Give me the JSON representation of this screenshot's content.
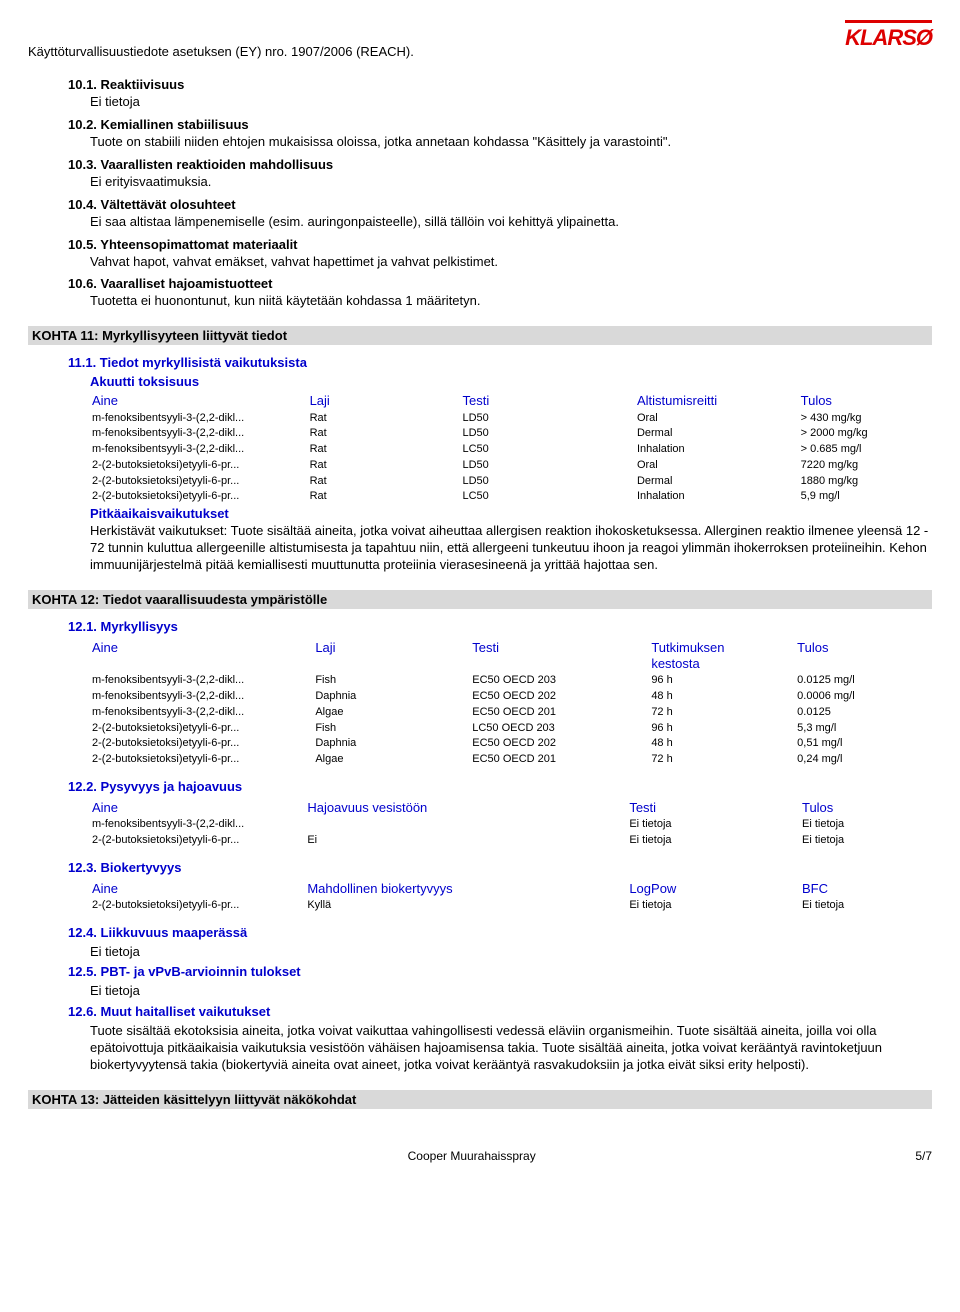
{
  "header": {
    "title": "Käyttöturvallisuustiedote asetuksen (EY) nro. 1907/2006 (REACH).",
    "logo": "KLARSØ"
  },
  "s10": {
    "h1": "10.1. Reaktiivisuus",
    "t1": "Ei tietoja",
    "h2": "10.2. Kemiallinen stabiilisuus",
    "t2": "Tuote on stabiili niiden ehtojen mukaisissa oloissa, jotka annetaan kohdassa \"Käsittely ja varastointi\".",
    "h3": "10.3. Vaarallisten reaktioiden mahdollisuus",
    "t3": "Ei erityisvaatimuksia.",
    "h4": "10.4. Vältettävät olosuhteet",
    "t4": "Ei saa altistaa lämpenemiselle (esim. auringonpaisteelle), sillä tällöin voi kehittyä ylipainetta.",
    "h5": "10.5. Yhteensopimattomat materiaalit",
    "t5": "Vahvat hapot, vahvat emäkset, vahvat hapettimet ja vahvat pelkistimet.",
    "h6": "10.6. Vaaralliset hajoamistuotteet",
    "t6": "Tuotetta ei huonontunut, kun niitä käytetään kohdassa 1 määritetyn."
  },
  "k11": {
    "title": "KOHTA 11: Myrkyllisyyteen liittyvät tiedot",
    "sub1": "11.1. Tiedot myrkyllisistä vaikutuksista",
    "sub2": "Akuutti toksisuus",
    "head": {
      "c1": "Aine",
      "c2": "Laji",
      "c3": "Testi",
      "c4": "Altistumisreitti",
      "c5": "Tulos"
    },
    "rows": [
      [
        "m-fenoksibentsyyli-3-(2,2-dikl...",
        "Rat",
        "LD50",
        "Oral",
        "> 430 mg/kg"
      ],
      [
        "m-fenoksibentsyyli-3-(2,2-dikl...",
        "Rat",
        "LD50",
        "Dermal",
        "> 2000 mg/kg"
      ],
      [
        "m-fenoksibentsyyli-3-(2,2-dikl...",
        "Rat",
        "LC50",
        "Inhalation",
        "> 0.685 mg/l"
      ],
      [
        "2-(2-butoksietoksi)etyyli-6-pr...",
        "Rat",
        "LD50",
        "Oral",
        "7220 mg/kg"
      ],
      [
        "2-(2-butoksietoksi)etyyli-6-pr...",
        "Rat",
        "LD50",
        "Dermal",
        "1880 mg/kg"
      ],
      [
        "2-(2-butoksietoksi)etyyli-6-pr...",
        "Rat",
        "LC50",
        "Inhalation",
        "5,9 mg/l"
      ]
    ],
    "sub3": "Pitkäaikaisvaikutukset",
    "para": "Herkistävät vaikutukset: Tuote sisältää aineita, jotka voivat aiheuttaa allergisen reaktion ihokosketuksessa. Allerginen reaktio ilmenee yleensä 12 - 72 tunnin kuluttua allergeenille altistumisesta ja tapahtuu niin, että allergeeni tunkeutuu ihoon ja reagoi ylimmän ihokerroksen proteiineihin. Kehon immuunijärjestelmä pitää kemiallisesti muuttunutta proteiinia vierasesineenä ja yrittää hajottaa sen."
  },
  "k12": {
    "title": "KOHTA 12: Tiedot vaarallisuudesta ympäristölle",
    "s1": "12.1. Myrkyllisyys",
    "head1": {
      "c1": "Aine",
      "c2": "Laji",
      "c3": "Testi",
      "c4a": "Tutkimuksen",
      "c4b": "kestosta",
      "c5": "Tulos"
    },
    "rows1": [
      [
        "m-fenoksibentsyyli-3-(2,2-dikl...",
        "Fish",
        "EC50 OECD 203",
        "96 h",
        "0.0125 mg/l"
      ],
      [
        "m-fenoksibentsyyli-3-(2,2-dikl...",
        "Daphnia",
        "EC50 OECD 202",
        "48 h",
        "0.0006 mg/l"
      ],
      [
        "m-fenoksibentsyyli-3-(2,2-dikl...",
        "Algae",
        "EC50 OECD 201",
        "72 h",
        "0.0125"
      ],
      [
        "2-(2-butoksietoksi)etyyli-6-pr...",
        "Fish",
        "LC50 OECD 203",
        "96 h",
        "5,3 mg/l"
      ],
      [
        "2-(2-butoksietoksi)etyyli-6-pr...",
        "Daphnia",
        "EC50 OECD 202",
        "48 h",
        "0,51 mg/l"
      ],
      [
        "2-(2-butoksietoksi)etyyli-6-pr...",
        "Algae",
        "EC50 OECD 201",
        "72 h",
        "0,24 mg/l"
      ]
    ],
    "s2": "12.2. Pysyvyys ja hajoavuus",
    "head2": {
      "c1": "Aine",
      "c2": "Hajoavuus vesistöön",
      "c3": "Testi",
      "c4": "Tulos"
    },
    "rows2": [
      [
        "m-fenoksibentsyyli-3-(2,2-dikl...",
        "",
        "Ei tietoja",
        "Ei tietoja"
      ],
      [
        "2-(2-butoksietoksi)etyyli-6-pr...",
        "Ei",
        "Ei tietoja",
        "Ei tietoja"
      ]
    ],
    "s3": "12.3. Biokertyvyys",
    "head3": {
      "c1": "Aine",
      "c2": "Mahdollinen biokertyvyys",
      "c3": "LogPow",
      "c4": "BFC"
    },
    "rows3": [
      [
        "2-(2-butoksietoksi)etyyli-6-pr...",
        "Kyllä",
        "Ei tietoja",
        "Ei tietoja"
      ]
    ],
    "s4": "12.4. Liikkuvuus maaperässä",
    "t4": "Ei tietoja",
    "s5": "12.5. PBT- ja vPvB-arvioinnin tulokset",
    "t5": "Ei tietoja",
    "s6": "12.6. Muut haitalliset vaikutukset",
    "para6": "Tuote sisältää ekotoksisia aineita, jotka voivat vaikuttaa vahingollisesti vedessä eläviin organismeihin. Tuote sisältää aineita, joilla voi olla epätoivottuja pitkäaikaisia vaikutuksia vesistöön vähäisen hajoamisensa takia. Tuote sisältää aineita, jotka voivat kerääntyä ravintoketjuun biokertyvyytensä takia (biokertyviä aineita ovat aineet, jotka voivat kerääntyä rasvakudoksiin ja jotka eivät siksi erity helposti)."
  },
  "k13": {
    "title": "KOHTA 13: Jätteiden käsittelyyn liittyvät näkökohdat"
  },
  "footer": {
    "product": "Cooper Muurahaisspray",
    "page": "5/7"
  }
}
